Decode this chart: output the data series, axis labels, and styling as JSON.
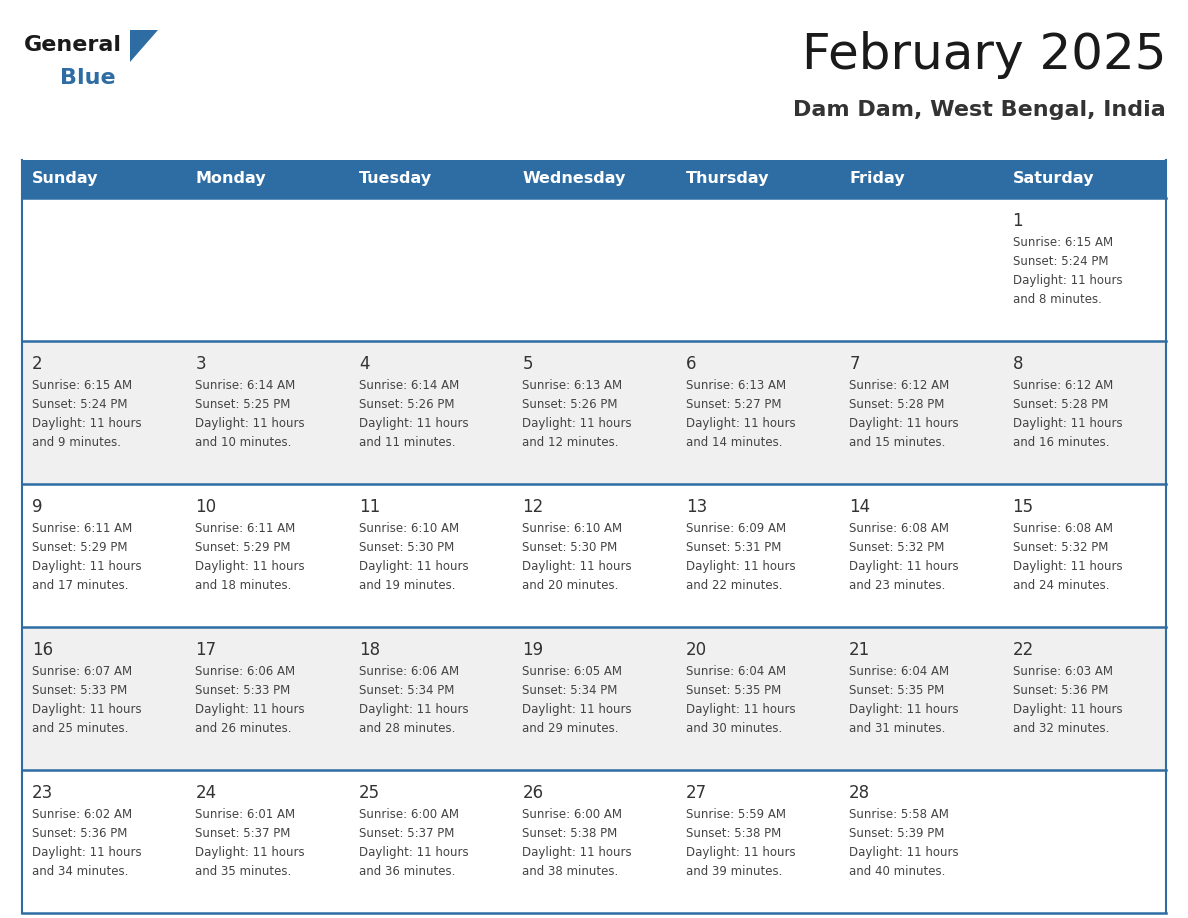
{
  "title": "February 2025",
  "subtitle": "Dam Dam, West Bengal, India",
  "days_of_week": [
    "Sunday",
    "Monday",
    "Tuesday",
    "Wednesday",
    "Thursday",
    "Friday",
    "Saturday"
  ],
  "header_bg": "#2E6DA4",
  "header_text_color": "#FFFFFF",
  "cell_bg_white": "#FFFFFF",
  "cell_bg_gray": "#F0F0F0",
  "separator_color": "#2E6DA4",
  "text_color": "#444444",
  "day_num_color": "#333333",
  "logo_general_color": "#1a1a1a",
  "logo_blue_color": "#2E6DA4",
  "weeks": [
    [
      null,
      null,
      null,
      null,
      null,
      null,
      1
    ],
    [
      2,
      3,
      4,
      5,
      6,
      7,
      8
    ],
    [
      9,
      10,
      11,
      12,
      13,
      14,
      15
    ],
    [
      16,
      17,
      18,
      19,
      20,
      21,
      22
    ],
    [
      23,
      24,
      25,
      26,
      27,
      28,
      null
    ]
  ],
  "sun_set_data": {
    "1": {
      "rise": "6:15 AM",
      "set": "5:24 PM",
      "hours": 11,
      "mins": 8
    },
    "2": {
      "rise": "6:15 AM",
      "set": "5:24 PM",
      "hours": 11,
      "mins": 9
    },
    "3": {
      "rise": "6:14 AM",
      "set": "5:25 PM",
      "hours": 11,
      "mins": 10
    },
    "4": {
      "rise": "6:14 AM",
      "set": "5:26 PM",
      "hours": 11,
      "mins": 11
    },
    "5": {
      "rise": "6:13 AM",
      "set": "5:26 PM",
      "hours": 11,
      "mins": 12
    },
    "6": {
      "rise": "6:13 AM",
      "set": "5:27 PM",
      "hours": 11,
      "mins": 14
    },
    "7": {
      "rise": "6:12 AM",
      "set": "5:28 PM",
      "hours": 11,
      "mins": 15
    },
    "8": {
      "rise": "6:12 AM",
      "set": "5:28 PM",
      "hours": 11,
      "mins": 16
    },
    "9": {
      "rise": "6:11 AM",
      "set": "5:29 PM",
      "hours": 11,
      "mins": 17
    },
    "10": {
      "rise": "6:11 AM",
      "set": "5:29 PM",
      "hours": 11,
      "mins": 18
    },
    "11": {
      "rise": "6:10 AM",
      "set": "5:30 PM",
      "hours": 11,
      "mins": 19
    },
    "12": {
      "rise": "6:10 AM",
      "set": "5:30 PM",
      "hours": 11,
      "mins": 20
    },
    "13": {
      "rise": "6:09 AM",
      "set": "5:31 PM",
      "hours": 11,
      "mins": 22
    },
    "14": {
      "rise": "6:08 AM",
      "set": "5:32 PM",
      "hours": 11,
      "mins": 23
    },
    "15": {
      "rise": "6:08 AM",
      "set": "5:32 PM",
      "hours": 11,
      "mins": 24
    },
    "16": {
      "rise": "6:07 AM",
      "set": "5:33 PM",
      "hours": 11,
      "mins": 25
    },
    "17": {
      "rise": "6:06 AM",
      "set": "5:33 PM",
      "hours": 11,
      "mins": 26
    },
    "18": {
      "rise": "6:06 AM",
      "set": "5:34 PM",
      "hours": 11,
      "mins": 28
    },
    "19": {
      "rise": "6:05 AM",
      "set": "5:34 PM",
      "hours": 11,
      "mins": 29
    },
    "20": {
      "rise": "6:04 AM",
      "set": "5:35 PM",
      "hours": 11,
      "mins": 30
    },
    "21": {
      "rise": "6:04 AM",
      "set": "5:35 PM",
      "hours": 11,
      "mins": 31
    },
    "22": {
      "rise": "6:03 AM",
      "set": "5:36 PM",
      "hours": 11,
      "mins": 32
    },
    "23": {
      "rise": "6:02 AM",
      "set": "5:36 PM",
      "hours": 11,
      "mins": 34
    },
    "24": {
      "rise": "6:01 AM",
      "set": "5:37 PM",
      "hours": 11,
      "mins": 35
    },
    "25": {
      "rise": "6:00 AM",
      "set": "5:37 PM",
      "hours": 11,
      "mins": 36
    },
    "26": {
      "rise": "6:00 AM",
      "set": "5:38 PM",
      "hours": 11,
      "mins": 38
    },
    "27": {
      "rise": "5:59 AM",
      "set": "5:38 PM",
      "hours": 11,
      "mins": 39
    },
    "28": {
      "rise": "5:58 AM",
      "set": "5:39 PM",
      "hours": 11,
      "mins": 40
    }
  }
}
